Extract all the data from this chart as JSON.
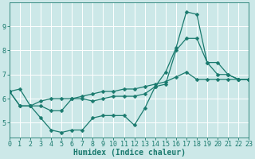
{
  "xlabel": "Humidex (Indice chaleur)",
  "bg_color": "#cce8e8",
  "line_color": "#1a7a6e",
  "grid_color": "#ffffff",
  "xlim": [
    0,
    23
  ],
  "ylim": [
    4.4,
    10.0
  ],
  "yticks": [
    5,
    6,
    7,
    8,
    9
  ],
  "xticks": [
    0,
    1,
    2,
    3,
    4,
    5,
    6,
    7,
    8,
    9,
    10,
    11,
    12,
    13,
    14,
    15,
    16,
    17,
    18,
    19,
    20,
    21,
    22,
    23
  ],
  "line1_x": [
    0,
    1,
    2,
    3,
    4,
    5,
    6,
    7,
    8,
    9,
    10,
    11,
    12,
    13,
    14,
    15,
    16,
    17,
    18,
    19,
    20,
    21,
    22,
    23
  ],
  "line1_y": [
    6.3,
    6.4,
    5.7,
    5.2,
    4.7,
    4.6,
    4.7,
    4.7,
    5.2,
    5.3,
    5.3,
    5.3,
    4.9,
    5.6,
    6.5,
    7.1,
    8.1,
    9.6,
    9.5,
    7.5,
    7.0,
    7.0,
    6.8,
    6.8
  ],
  "line2_x": [
    0,
    1,
    2,
    3,
    4,
    5,
    6,
    7,
    8,
    9,
    10,
    11,
    12,
    13,
    14,
    15,
    16,
    17,
    18,
    19,
    20,
    21,
    22,
    23
  ],
  "line2_y": [
    6.3,
    5.7,
    5.7,
    5.9,
    6.0,
    6.0,
    6.0,
    6.1,
    6.2,
    6.3,
    6.3,
    6.4,
    6.4,
    6.5,
    6.6,
    6.7,
    6.9,
    7.1,
    6.8,
    6.8,
    6.8,
    6.8,
    6.8,
    6.8
  ],
  "line3_x": [
    0,
    1,
    2,
    3,
    4,
    5,
    6,
    7,
    8,
    9,
    10,
    11,
    12,
    13,
    14,
    15,
    16,
    17,
    18,
    19,
    20,
    21,
    22,
    23
  ],
  "line3_y": [
    6.3,
    5.7,
    5.7,
    5.7,
    5.5,
    5.5,
    6.0,
    6.0,
    5.9,
    6.0,
    6.1,
    6.1,
    6.1,
    6.2,
    6.5,
    6.6,
    8.0,
    8.5,
    8.5,
    7.5,
    7.5,
    7.0,
    6.8,
    6.8
  ],
  "markersize": 2.5,
  "linewidth": 0.9,
  "tick_fontsize": 6,
  "xlabel_fontsize": 7
}
